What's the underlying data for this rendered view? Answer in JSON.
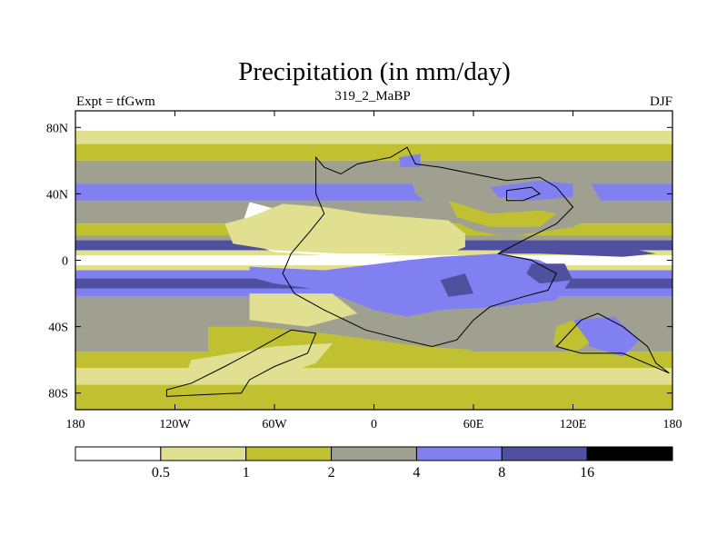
{
  "chart_data": {
    "type": "heatmap",
    "title": "Precipitation (in mm/day)",
    "left_string": "Expt = tfGwm",
    "center_string": "319_2_MaBP",
    "right_string": "DJF",
    "x_range": [
      -180,
      180
    ],
    "y_range": [
      -90,
      90
    ],
    "x_ticks": [
      {
        "value": -180,
        "label": "180"
      },
      {
        "value": -120,
        "label": "120W"
      },
      {
        "value": -60,
        "label": "60W"
      },
      {
        "value": 0,
        "label": "0"
      },
      {
        "value": 60,
        "label": "60E"
      },
      {
        "value": 120,
        "label": "120E"
      },
      {
        "value": 180,
        "label": "180"
      }
    ],
    "y_ticks": [
      {
        "value": 80,
        "label": "80N"
      },
      {
        "value": 40,
        "label": "40N"
      },
      {
        "value": 0,
        "label": "0"
      },
      {
        "value": -40,
        "label": "40S"
      },
      {
        "value": -80,
        "label": "80S"
      }
    ],
    "colorbar": {
      "levels": [
        "0.5",
        "1",
        "2",
        "4",
        "8",
        "16"
      ],
      "colors": [
        "#ffffff",
        "#e0e090",
        "#c0c030",
        "#a0a090",
        "#8080f0",
        "#5050a0",
        "#000000"
      ]
    },
    "bands": [
      {
        "name": "band-polar-north",
        "lat": [
          78,
          90
        ],
        "cls": 0
      },
      {
        "name": "band-north-subpolar",
        "lat": [
          70,
          78
        ],
        "cls": 1
      },
      {
        "name": "band-north-yellow",
        "lat": [
          60,
          70
        ],
        "cls": 2
      },
      {
        "name": "band-north-gray",
        "lat": [
          22,
          60
        ],
        "cls": 3
      },
      {
        "name": "band-north-midlat-blue",
        "lat": [
          36,
          46
        ],
        "cls": 4
      },
      {
        "name": "band-north-subtropic",
        "lat": [
          15,
          22
        ],
        "cls": 2
      },
      {
        "name": "band-north-tropic-gray",
        "lat": [
          6,
          15
        ],
        "cls": 3
      },
      {
        "name": "band-north-itcz",
        "lat": [
          6,
          12
        ],
        "cls": 5
      },
      {
        "name": "band-equator-yellow",
        "lat": [
          3,
          6
        ],
        "cls": 1
      },
      {
        "name": "band-equator-dry",
        "lat": [
          -3,
          3
        ],
        "cls": 0
      },
      {
        "name": "band-south-equator-yellow",
        "lat": [
          -6,
          -3
        ],
        "cls": 1
      },
      {
        "name": "band-south-itcz",
        "lat": [
          -22,
          -6
        ],
        "cls": 4
      },
      {
        "name": "band-south-itcz-core",
        "lat": [
          -17,
          -11
        ],
        "cls": 5
      },
      {
        "name": "band-south-gray",
        "lat": [
          -55,
          -22
        ],
        "cls": 3
      },
      {
        "name": "band-south-yellow",
        "lat": [
          -65,
          -55
        ],
        "cls": 2
      },
      {
        "name": "band-south-subpolar",
        "lat": [
          -75,
          -65
        ],
        "cls": 1
      },
      {
        "name": "band-south-polar",
        "lat": [
          -90,
          -75
        ],
        "cls": 2
      }
    ],
    "regions": [
      {
        "name": "region-north-dry-subtropics",
        "cls": 0,
        "points": [
          [
            -75,
            35
          ],
          [
            -60,
            31
          ],
          [
            -35,
            28
          ],
          [
            -5,
            24
          ],
          [
            20,
            22
          ],
          [
            45,
            20
          ],
          [
            50,
            10
          ],
          [
            35,
            5
          ],
          [
            0,
            3
          ],
          [
            -30,
            3
          ],
          [
            -60,
            5
          ],
          [
            -75,
            10
          ],
          [
            -80,
            20
          ]
        ]
      },
      {
        "name": "region-north-dry-fringe",
        "cls": 1,
        "points": [
          [
            -90,
            22
          ],
          [
            -75,
            26
          ],
          [
            -55,
            34
          ],
          [
            -30,
            32
          ],
          [
            -5,
            28
          ],
          [
            20,
            26
          ],
          [
            45,
            24
          ],
          [
            55,
            16
          ],
          [
            55,
            8
          ],
          [
            45,
            4
          ],
          [
            20,
            4
          ],
          [
            -20,
            4
          ],
          [
            -60,
            6
          ],
          [
            -85,
            10
          ]
        ]
      },
      {
        "name": "region-eurasia-gray",
        "cls": 3,
        "points": [
          [
            20,
            58
          ],
          [
            60,
            56
          ],
          [
            100,
            52
          ],
          [
            130,
            48
          ],
          [
            140,
            30
          ],
          [
            120,
            20
          ],
          [
            80,
            14
          ],
          [
            60,
            18
          ],
          [
            40,
            28
          ],
          [
            25,
            40
          ]
        ]
      },
      {
        "name": "region-eurasia-blue",
        "cls": 4,
        "points": [
          [
            70,
            44
          ],
          [
            100,
            48
          ],
          [
            120,
            46
          ],
          [
            120,
            38
          ],
          [
            95,
            36
          ],
          [
            75,
            38
          ]
        ]
      },
      {
        "name": "region-arctic-blue",
        "cls": 4,
        "points": [
          [
            15,
            62
          ],
          [
            28,
            64
          ],
          [
            28,
            56
          ],
          [
            16,
            56
          ]
        ]
      },
      {
        "name": "region-asia-yellow",
        "cls": 2,
        "points": [
          [
            45,
            36
          ],
          [
            70,
            28
          ],
          [
            100,
            30
          ],
          [
            110,
            28
          ],
          [
            100,
            20
          ],
          [
            70,
            20
          ],
          [
            50,
            26
          ]
        ]
      },
      {
        "name": "region-pacific-west-wet",
        "cls": 5,
        "points": [
          [
            80,
            10
          ],
          [
            110,
            12
          ],
          [
            150,
            8
          ],
          [
            170,
            4
          ],
          [
            150,
            2
          ],
          [
            100,
            4
          ],
          [
            75,
            4
          ]
        ]
      },
      {
        "name": "region-southern-blue",
        "cls": 4,
        "points": [
          [
            -75,
            -4
          ],
          [
            -30,
            -6
          ],
          [
            20,
            0
          ],
          [
            40,
            2
          ],
          [
            75,
            4
          ],
          [
            100,
            0
          ],
          [
            120,
            -10
          ],
          [
            110,
            -24
          ],
          [
            75,
            -28
          ],
          [
            40,
            -30
          ],
          [
            20,
            -34
          ],
          [
            0,
            -30
          ],
          [
            -30,
            -18
          ],
          [
            -60,
            -14
          ],
          [
            -75,
            -10
          ]
        ]
      },
      {
        "name": "region-southern-deep-blue",
        "cls": 5,
        "points": [
          [
            40,
            -12
          ],
          [
            55,
            -8
          ],
          [
            60,
            -20
          ],
          [
            45,
            -22
          ]
        ]
      },
      {
        "name": "region-pacific-south-deep",
        "cls": 5,
        "points": [
          [
            95,
            -2
          ],
          [
            115,
            -2
          ],
          [
            120,
            -12
          ],
          [
            100,
            -14
          ],
          [
            92,
            -8
          ]
        ]
      },
      {
        "name": "region-south-atlantic-dry",
        "cls": 0,
        "points": [
          [
            -60,
            -24
          ],
          [
            -30,
            -24
          ],
          [
            -20,
            -30
          ],
          [
            -40,
            -34
          ],
          [
            -65,
            -30
          ]
        ]
      },
      {
        "name": "region-south-atlantic-fringe",
        "cls": 1,
        "points": [
          [
            -75,
            -20
          ],
          [
            -25,
            -20
          ],
          [
            -10,
            -32
          ],
          [
            -40,
            -40
          ],
          [
            -75,
            -36
          ]
        ]
      },
      {
        "name": "region-south-yellow-west",
        "cls": 2,
        "points": [
          [
            -100,
            -40
          ],
          [
            -70,
            -40
          ],
          [
            -30,
            -44
          ],
          [
            0,
            -48
          ],
          [
            30,
            -52
          ],
          [
            60,
            -54
          ],
          [
            40,
            -62
          ],
          [
            -10,
            -62
          ],
          [
            -60,
            -64
          ],
          [
            -100,
            -58
          ]
        ]
      },
      {
        "name": "region-south-dry-west",
        "cls": 0,
        "points": [
          [
            -95,
            -66
          ],
          [
            -70,
            -62
          ],
          [
            -55,
            -58
          ],
          [
            -35,
            -56
          ],
          [
            -45,
            -64
          ],
          [
            -70,
            -70
          ],
          [
            -95,
            -72
          ]
        ]
      },
      {
        "name": "region-south-dry-fringe",
        "cls": 1,
        "points": [
          [
            -110,
            -60
          ],
          [
            -60,
            -52
          ],
          [
            -25,
            -50
          ],
          [
            -35,
            -62
          ],
          [
            -70,
            -74
          ],
          [
            -115,
            -72
          ]
        ]
      },
      {
        "name": "region-australia-blue",
        "cls": 4,
        "points": [
          [
            120,
            -36
          ],
          [
            145,
            -34
          ],
          [
            160,
            -48
          ],
          [
            150,
            -58
          ],
          [
            130,
            -52
          ]
        ]
      },
      {
        "name": "region-australia-yellow",
        "cls": 2,
        "points": [
          [
            110,
            -40
          ],
          [
            120,
            -36
          ],
          [
            130,
            -50
          ],
          [
            120,
            -56
          ],
          [
            108,
            -50
          ]
        ]
      }
    ],
    "coastlines": [
      {
        "name": "coastline-pangaea",
        "points": [
          [
            -35,
            62
          ],
          [
            -30,
            56
          ],
          [
            -20,
            52
          ],
          [
            -10,
            58
          ],
          [
            10,
            62
          ],
          [
            20,
            68
          ],
          [
            25,
            58
          ],
          [
            40,
            56
          ],
          [
            60,
            52
          ],
          [
            80,
            48
          ],
          [
            100,
            50
          ],
          [
            110,
            44
          ],
          [
            120,
            32
          ],
          [
            110,
            22
          ],
          [
            90,
            12
          ],
          [
            75,
            4
          ],
          [
            95,
            0
          ],
          [
            110,
            -8
          ],
          [
            105,
            -18
          ],
          [
            90,
            -22
          ],
          [
            70,
            -28
          ],
          [
            60,
            -36
          ],
          [
            50,
            -48
          ],
          [
            35,
            -52
          ],
          [
            18,
            -48
          ],
          [
            -5,
            -42
          ],
          [
            -30,
            -30
          ],
          [
            -48,
            -20
          ],
          [
            -55,
            -8
          ],
          [
            -50,
            4
          ],
          [
            -38,
            18
          ],
          [
            -30,
            28
          ],
          [
            -35,
            40
          ],
          [
            -35,
            50
          ]
        ]
      },
      {
        "name": "coastline-antarctica",
        "points": [
          [
            -125,
            -78
          ],
          [
            -110,
            -74
          ],
          [
            -90,
            -64
          ],
          [
            -75,
            -56
          ],
          [
            -50,
            -42
          ],
          [
            -35,
            -44
          ],
          [
            -40,
            -56
          ],
          [
            -60,
            -64
          ],
          [
            -75,
            -72
          ],
          [
            -80,
            -80
          ],
          [
            -125,
            -82
          ]
        ]
      },
      {
        "name": "coastline-australia",
        "points": [
          [
            110,
            -52
          ],
          [
            125,
            -36
          ],
          [
            135,
            -32
          ],
          [
            150,
            -40
          ],
          [
            165,
            -52
          ],
          [
            170,
            -62
          ],
          [
            178,
            -68
          ],
          [
            150,
            -56
          ],
          [
            125,
            -56
          ]
        ]
      },
      {
        "name": "coastline-east-asia-block",
        "points": [
          [
            80,
            42
          ],
          [
            95,
            44
          ],
          [
            100,
            40
          ],
          [
            90,
            36
          ],
          [
            80,
            36
          ]
        ]
      }
    ]
  }
}
